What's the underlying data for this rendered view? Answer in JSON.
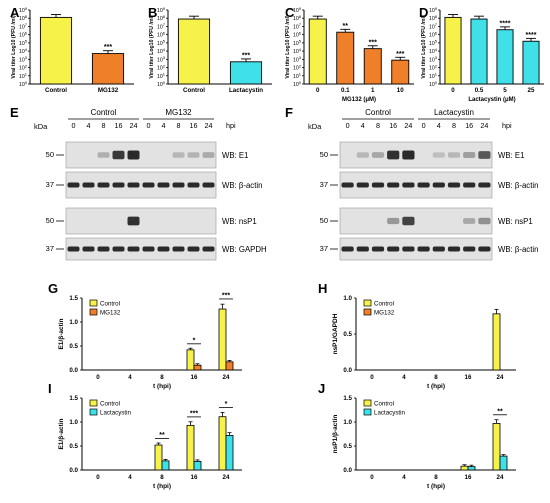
{
  "panels": {
    "A": {
      "letter": "A"
    },
    "B": {
      "letter": "B"
    },
    "C": {
      "letter": "C"
    },
    "D": {
      "letter": "D"
    },
    "E": {
      "letter": "E"
    },
    "F": {
      "letter": "F"
    },
    "G": {
      "letter": "G"
    },
    "H": {
      "letter": "H"
    },
    "I": {
      "letter": "I"
    },
    "J": {
      "letter": "J"
    }
  },
  "colors": {
    "yellow": "#f7f24a",
    "orange": "#f07f2a",
    "cyan": "#3fe0e8",
    "axis": "#000000",
    "blot_bg": "#e2e2e2",
    "band": "#2a2a2a"
  },
  "blots": {
    "E": {
      "kda_label": "kDa",
      "groups": [
        "Control",
        "MG132"
      ],
      "lanes": [
        "0",
        "4",
        "8",
        "16",
        "24",
        "0",
        "4",
        "8",
        "16",
        "24"
      ],
      "unit": "hpi",
      "strips": [
        {
          "wb": "WB: E1",
          "marker": "50"
        },
        {
          "wb": "WB: β-actin",
          "marker": "37"
        },
        {
          "wb": "WB: nsP1",
          "marker": "50"
        },
        {
          "wb": "WB: GAPDH",
          "marker": "37"
        }
      ]
    },
    "F": {
      "kda_label": "kDa",
      "groups": [
        "Control",
        "Lactacystin"
      ],
      "lanes": [
        "0",
        "4",
        "8",
        "16",
        "24",
        "0",
        "4",
        "8",
        "16",
        "24"
      ],
      "unit": "hpi",
      "strips": [
        {
          "wb": "WB: E1",
          "marker": "50"
        },
        {
          "wb": "WB: β-actin",
          "marker": "37"
        },
        {
          "wb": "WB: nsP1",
          "marker": "50"
        },
        {
          "wb": "WB: β-actin",
          "marker": "37"
        }
      ]
    }
  },
  "chart_data": [
    {
      "panel": "A",
      "type": "bar",
      "categories": [
        "Control",
        "MG132"
      ],
      "values": [
        8.1,
        3.7
      ],
      "colors": [
        "#f7f24a",
        "#f07f2a"
      ],
      "ylabel": "Viral titer Log10 (PFU /ml)",
      "ylim": [
        0,
        9
      ],
      "ytick_labels": [
        "10^0",
        "10^1",
        "10^2",
        "10^3",
        "10^4",
        "10^5",
        "10^6",
        "10^7",
        "10^8",
        "10^9"
      ],
      "significance": [
        "",
        "***"
      ]
    },
    {
      "panel": "B",
      "type": "bar",
      "categories": [
        "Control",
        "Lactacystin"
      ],
      "values": [
        7.9,
        2.7
      ],
      "colors": [
        "#f7f24a",
        "#3fe0e8"
      ],
      "ylabel": "Viral titer Log10 (PFU /ml)",
      "ylim": [
        0,
        9
      ],
      "ytick_labels": [
        "10^0",
        "10^1",
        "10^2",
        "10^3",
        "10^4",
        "10^5",
        "10^6",
        "10^7",
        "10^8",
        "10^9"
      ],
      "significance": [
        "",
        "***"
      ]
    },
    {
      "panel": "C",
      "type": "bar",
      "categories": [
        "0",
        "0.1",
        "1",
        "10"
      ],
      "values": [
        7.9,
        6.3,
        4.3,
        2.9
      ],
      "colors": [
        "#f7f24a",
        "#f07f2a",
        "#f07f2a",
        "#f07f2a"
      ],
      "ylabel": "Viral titer Log10 (PFU /ml)",
      "xlabel": "MG132 (μM)",
      "ylim": [
        0,
        9
      ],
      "ytick_labels": [
        "10^0",
        "10^1",
        "10^2",
        "10^3",
        "10^4",
        "10^5",
        "10^6",
        "10^7",
        "10^8",
        "10^9"
      ],
      "significance": [
        "",
        "**",
        "***",
        "***"
      ]
    },
    {
      "panel": "D",
      "type": "bar",
      "categories": [
        "0",
        "0.5",
        "5",
        "25"
      ],
      "values": [
        8.1,
        7.9,
        6.6,
        5.2
      ],
      "colors": [
        "#f7f24a",
        "#3fe0e8",
        "#3fe0e8",
        "#3fe0e8"
      ],
      "ylabel": "Viral titer Log10 (PFU /ml)",
      "xlabel": "Lactacystin (μM)",
      "ylim": [
        0,
        9
      ],
      "ytick_labels": [
        "10^0",
        "10^1",
        "10^2",
        "10^3",
        "10^4",
        "10^5",
        "10^6",
        "10^7",
        "10^8",
        "10^9"
      ],
      "significance": [
        "",
        "",
        "****",
        "****"
      ]
    },
    {
      "panel": "G",
      "type": "bar",
      "categories": [
        "0",
        "4",
        "8",
        "16",
        "24"
      ],
      "series": [
        {
          "name": "Control",
          "color": "#f7f24a",
          "values": [
            0,
            0,
            0,
            0.42,
            1.27
          ]
        },
        {
          "name": "MG132",
          "color": "#f07f2a",
          "values": [
            0,
            0,
            0,
            0.1,
            0.17
          ]
        }
      ],
      "ylabel": "E1/β-actin",
      "xlabel": "t (hpi)",
      "ylim": [
        0,
        1.5
      ],
      "yticks": [
        "0.0",
        "0.5",
        "1.0",
        "1.5"
      ],
      "significance": [
        {
          "category": "16",
          "label": "*"
        },
        {
          "category": "24",
          "label": "***"
        }
      ]
    },
    {
      "panel": "H",
      "type": "bar",
      "categories": [
        "0",
        "4",
        "8",
        "16",
        "24"
      ],
      "series": [
        {
          "name": "Control",
          "color": "#f7f24a",
          "values": [
            0,
            0,
            0,
            0,
            0.78
          ]
        },
        {
          "name": "MG132",
          "color": "#f07f2a",
          "values": [
            0,
            0,
            0,
            0,
            0
          ]
        }
      ],
      "ylabel": "nsP1/GAPDH",
      "xlabel": "t (hpi)",
      "ylim": [
        0,
        1.0
      ],
      "yticks": [
        "0.0",
        "0.5",
        "1.0"
      ],
      "significance": []
    },
    {
      "panel": "I",
      "type": "bar",
      "categories": [
        "0",
        "4",
        "8",
        "16",
        "24"
      ],
      "series": [
        {
          "name": "Control",
          "color": "#f7f24a",
          "values": [
            0,
            0,
            0.52,
            0.93,
            1.11
          ]
        },
        {
          "name": "Lactacystin",
          "color": "#3fe0e8",
          "values": [
            0,
            0,
            0.19,
            0.18,
            0.72
          ]
        }
      ],
      "ylabel": "E1/β-actin",
      "xlabel": "t (hpi)",
      "ylim": [
        0,
        1.5
      ],
      "yticks": [
        "0.0",
        "0.5",
        "1.0",
        "1.5"
      ],
      "significance": [
        {
          "category": "8",
          "label": "**"
        },
        {
          "category": "16",
          "label": "***"
        },
        {
          "category": "24",
          "label": "*"
        }
      ]
    },
    {
      "panel": "J",
      "type": "bar",
      "categories": [
        "0",
        "4",
        "8",
        "16",
        "24"
      ],
      "series": [
        {
          "name": "Control",
          "color": "#f7f24a",
          "values": [
            0,
            0,
            0,
            0.08,
            0.97
          ]
        },
        {
          "name": "Lactacystin",
          "color": "#3fe0e8",
          "values": [
            0,
            0,
            0,
            0.07,
            0.29
          ]
        }
      ],
      "ylabel": "nsP1/β-actin",
      "xlabel": "t (hpi)",
      "ylim": [
        0,
        1.5
      ],
      "yticks": [
        "0.0",
        "0.5",
        "1.0",
        "1.5"
      ],
      "significance": [
        {
          "category": "24",
          "label": "**"
        }
      ]
    }
  ]
}
